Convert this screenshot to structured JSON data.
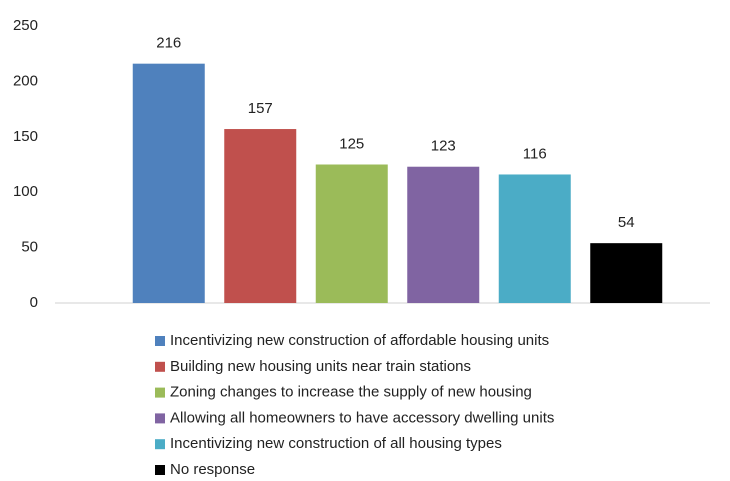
{
  "chart_data": {
    "type": "bar",
    "categories": [
      "Incentivizing new construction of affordable housing units",
      "Building new housing units near train stations",
      "Zoning changes to increase the supply of new housing",
      "Allowing all homeowners to have accessory dwelling units",
      "Incentivizing new construction of all housing types",
      "No response"
    ],
    "values": [
      216,
      157,
      125,
      123,
      116,
      54
    ],
    "colors": [
      "#4f81bd",
      "#c0504d",
      "#9bbb59",
      "#8064a2",
      "#4bacc6",
      "#000000"
    ],
    "ylim": [
      0,
      250
    ],
    "yticks": [
      0,
      50,
      100,
      150,
      200,
      250
    ],
    "grid": false,
    "legend": "bottom"
  }
}
